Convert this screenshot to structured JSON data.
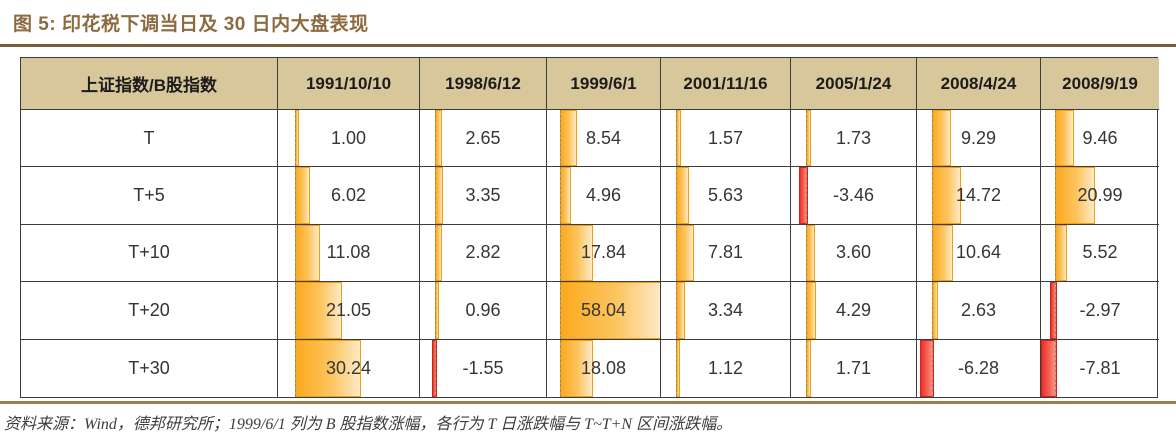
{
  "title": "图 5: 印花税下调当日及 30 日内大盘表现",
  "source_note": "资料来源：Wind，德邦研究所；1999/6/1 列为 B 股指数涨幅，各行为 T 日涨跌幅与 T~T+N 区间涨跌幅。",
  "colors": {
    "title_brown": "#8d6b40",
    "rule_dark_brown": "#7d5e3a",
    "rule_light_brown": "#9c7e51",
    "header_bg": "#d9c79c",
    "border": "#3c3c3c",
    "positive_bar": "#FBA91E",
    "negative_bar": "#ED2F28"
  },
  "chart_data": {
    "type": "table",
    "title": "印花税下调当日及 30 日内大盘表现",
    "corner_header": "上证指数/B股指数",
    "columns": [
      "1991/10/10",
      "1998/6/12",
      "1999/6/1",
      "2001/11/16",
      "2005/1/24",
      "2008/4/24",
      "2008/9/19"
    ],
    "rows": [
      {
        "label": "T",
        "values": [
          1.0,
          2.65,
          8.54,
          1.57,
          1.73,
          9.29,
          9.46
        ]
      },
      {
        "label": "T+5",
        "values": [
          6.02,
          3.35,
          4.96,
          5.63,
          -3.46,
          14.72,
          20.99
        ]
      },
      {
        "label": "T+10",
        "values": [
          11.08,
          2.82,
          17.84,
          7.81,
          3.6,
          10.64,
          5.52
        ]
      },
      {
        "label": "T+20",
        "values": [
          21.05,
          0.96,
          58.04,
          3.34,
          4.29,
          2.63,
          -2.97
        ]
      },
      {
        "label": "T+30",
        "values": [
          30.24,
          -1.55,
          18.08,
          1.12,
          1.71,
          -6.28,
          -7.81
        ]
      }
    ],
    "databar": {
      "scale_min": -7.81,
      "scale_max": 58.04,
      "axis_style": "dashed",
      "positive_color": "#FBA91E",
      "negative_color": "#ED2F28"
    }
  }
}
